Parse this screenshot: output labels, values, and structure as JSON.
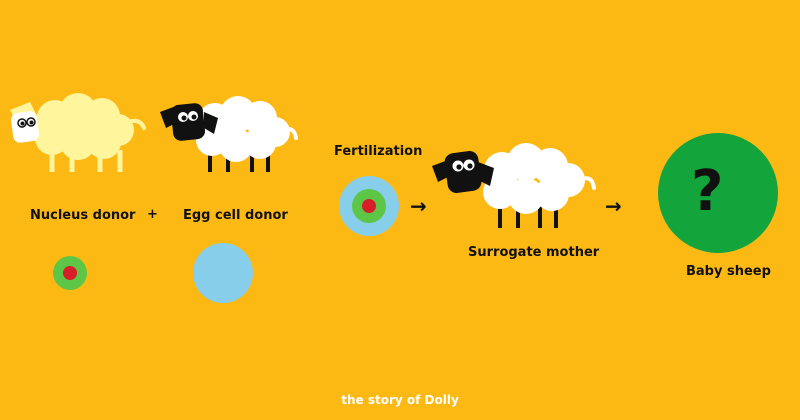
{
  "labels": {
    "nucleus_donor": "Nucleus donor",
    "plus": "+",
    "egg_cell_donor": "Egg cell donor",
    "fertilization": "Fertilization",
    "surrogate_mother": "Surrogate mother",
    "baby_sheep": "Baby sheep",
    "question_mark": "?"
  },
  "arrows": [
    "→",
    "→"
  ],
  "caption": "the story of Dolly",
  "colors": {
    "background": "#FDB913",
    "nucleus_donor_wool": "#FFF59D",
    "sheep_white": "#FFFFFF",
    "sheep_face_black": "#111111",
    "cell_green": "#5DC646",
    "nucleus_red": "#D81E2A",
    "egg_blue": "#87CEEB",
    "baby_circle": "#14A43C"
  }
}
